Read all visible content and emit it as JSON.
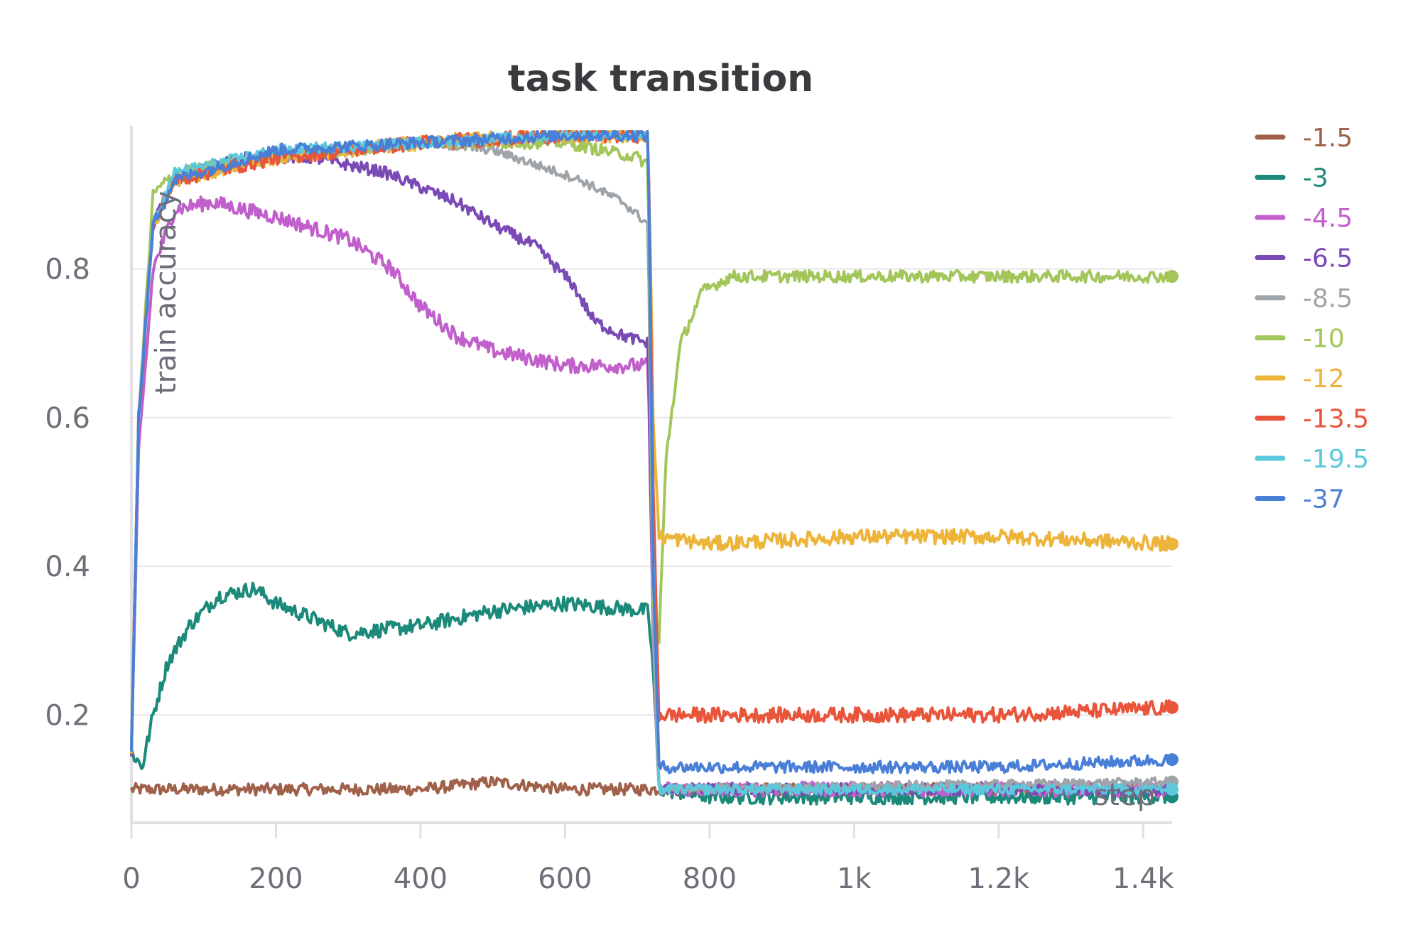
{
  "chart_data": {
    "type": "line",
    "title": "task transition",
    "ylabel": "train accuracy",
    "xlabel": "step",
    "xlim": [
      0,
      1440
    ],
    "ylim": [
      0.055,
      0.985
    ],
    "x_ticks": [
      0,
      200,
      400,
      600,
      800,
      1000,
      1200,
      1400
    ],
    "x_tick_labels": [
      "0",
      "200",
      "400",
      "600",
      "800",
      "1k",
      "1.2k",
      "1.4k"
    ],
    "y_ticks": [
      0.2,
      0.4,
      0.6,
      0.8
    ],
    "y_tick_labels": [
      "0.2",
      "0.4",
      "0.6",
      "0.8"
    ],
    "grid": true,
    "legend_position": "right",
    "series": [
      {
        "name": "-1.5",
        "color": "#a0614a",
        "points": [
          [
            0,
            0.1
          ],
          [
            100,
            0.1
          ],
          [
            200,
            0.1
          ],
          [
            300,
            0.1
          ],
          [
            400,
            0.1
          ],
          [
            500,
            0.11
          ],
          [
            600,
            0.1
          ],
          [
            700,
            0.1
          ],
          [
            720,
            0.1
          ],
          [
            740,
            0.1
          ],
          [
            1440,
            0.1
          ]
        ],
        "noise": 0.008,
        "end_marker": false
      },
      {
        "name": "-3",
        "color": "#1c8a7a",
        "points": [
          [
            0,
            0.15
          ],
          [
            15,
            0.13
          ],
          [
            30,
            0.2
          ],
          [
            50,
            0.27
          ],
          [
            80,
            0.32
          ],
          [
            120,
            0.36
          ],
          [
            170,
            0.37
          ],
          [
            200,
            0.35
          ],
          [
            300,
            0.31
          ],
          [
            400,
            0.32
          ],
          [
            500,
            0.34
          ],
          [
            600,
            0.35
          ],
          [
            715,
            0.34
          ],
          [
            722,
            0.26
          ],
          [
            730,
            0.1
          ],
          [
            800,
            0.09
          ],
          [
            1440,
            0.09
          ]
        ],
        "noise": 0.01,
        "end_marker": true
      },
      {
        "name": "-4.5",
        "color": "#c160cc",
        "points": [
          [
            0,
            0.15
          ],
          [
            10,
            0.55
          ],
          [
            30,
            0.8
          ],
          [
            60,
            0.88
          ],
          [
            110,
            0.89
          ],
          [
            200,
            0.87
          ],
          [
            300,
            0.84
          ],
          [
            360,
            0.8
          ],
          [
            400,
            0.75
          ],
          [
            450,
            0.71
          ],
          [
            500,
            0.69
          ],
          [
            550,
            0.68
          ],
          [
            600,
            0.67
          ],
          [
            650,
            0.67
          ],
          [
            715,
            0.67
          ],
          [
            722,
            0.3
          ],
          [
            730,
            0.1
          ],
          [
            1440,
            0.1
          ]
        ],
        "noise": 0.01,
        "end_marker": false
      },
      {
        "name": "-6.5",
        "color": "#7a4ab5",
        "points": [
          [
            0,
            0.15
          ],
          [
            10,
            0.6
          ],
          [
            30,
            0.86
          ],
          [
            60,
            0.92
          ],
          [
            150,
            0.95
          ],
          [
            250,
            0.95
          ],
          [
            350,
            0.93
          ],
          [
            400,
            0.91
          ],
          [
            450,
            0.89
          ],
          [
            500,
            0.86
          ],
          [
            560,
            0.83
          ],
          [
            610,
            0.78
          ],
          [
            640,
            0.73
          ],
          [
            680,
            0.71
          ],
          [
            715,
            0.7
          ],
          [
            722,
            0.3
          ],
          [
            730,
            0.1
          ],
          [
            1440,
            0.1
          ]
        ],
        "noise": 0.008,
        "end_marker": false
      },
      {
        "name": "-8.5",
        "color": "#9fa4a8",
        "points": [
          [
            0,
            0.15
          ],
          [
            10,
            0.6
          ],
          [
            30,
            0.86
          ],
          [
            60,
            0.92
          ],
          [
            200,
            0.95
          ],
          [
            400,
            0.97
          ],
          [
            500,
            0.96
          ],
          [
            560,
            0.94
          ],
          [
            620,
            0.92
          ],
          [
            680,
            0.89
          ],
          [
            715,
            0.86
          ],
          [
            722,
            0.3
          ],
          [
            730,
            0.1
          ],
          [
            1440,
            0.11
          ]
        ],
        "noise": 0.006,
        "end_marker": true
      },
      {
        "name": "-10",
        "color": "#a2c65a",
        "points": [
          [
            0,
            0.15
          ],
          [
            10,
            0.6
          ],
          [
            30,
            0.9
          ],
          [
            60,
            0.93
          ],
          [
            200,
            0.95
          ],
          [
            400,
            0.97
          ],
          [
            600,
            0.97
          ],
          [
            700,
            0.95
          ],
          [
            715,
            0.94
          ],
          [
            722,
            0.35
          ],
          [
            730,
            0.3
          ],
          [
            740,
            0.55
          ],
          [
            760,
            0.7
          ],
          [
            790,
            0.77
          ],
          [
            830,
            0.79
          ],
          [
            1000,
            0.79
          ],
          [
            1200,
            0.79
          ],
          [
            1440,
            0.79
          ]
        ],
        "noise": 0.008,
        "end_marker": true
      },
      {
        "name": "-12",
        "color": "#edb43a",
        "points": [
          [
            0,
            0.15
          ],
          [
            10,
            0.6
          ],
          [
            30,
            0.86
          ],
          [
            60,
            0.92
          ],
          [
            200,
            0.95
          ],
          [
            400,
            0.97
          ],
          [
            600,
            0.98
          ],
          [
            715,
            0.98
          ],
          [
            722,
            0.6
          ],
          [
            730,
            0.44
          ],
          [
            800,
            0.43
          ],
          [
            1000,
            0.44
          ],
          [
            1200,
            0.44
          ],
          [
            1440,
            0.43
          ]
        ],
        "noise": 0.01,
        "end_marker": true
      },
      {
        "name": "-13.5",
        "color": "#e8553b",
        "points": [
          [
            0,
            0.15
          ],
          [
            10,
            0.6
          ],
          [
            30,
            0.86
          ],
          [
            60,
            0.92
          ],
          [
            200,
            0.95
          ],
          [
            400,
            0.97
          ],
          [
            600,
            0.98
          ],
          [
            715,
            0.98
          ],
          [
            722,
            0.5
          ],
          [
            730,
            0.2
          ],
          [
            800,
            0.2
          ],
          [
            1000,
            0.2
          ],
          [
            1200,
            0.2
          ],
          [
            1440,
            0.21
          ]
        ],
        "noise": 0.01,
        "end_marker": true
      },
      {
        "name": "-19.5",
        "color": "#5cc8dc",
        "points": [
          [
            0,
            0.15
          ],
          [
            10,
            0.6
          ],
          [
            30,
            0.86
          ],
          [
            60,
            0.93
          ],
          [
            200,
            0.96
          ],
          [
            400,
            0.97
          ],
          [
            600,
            0.98
          ],
          [
            715,
            0.98
          ],
          [
            722,
            0.4
          ],
          [
            730,
            0.1
          ],
          [
            1440,
            0.1
          ]
        ],
        "noise": 0.007,
        "end_marker": true
      },
      {
        "name": "-37",
        "color": "#4a7fd8",
        "points": [
          [
            0,
            0.15
          ],
          [
            10,
            0.6
          ],
          [
            30,
            0.86
          ],
          [
            60,
            0.92
          ],
          [
            200,
            0.96
          ],
          [
            400,
            0.97
          ],
          [
            600,
            0.98
          ],
          [
            715,
            0.98
          ],
          [
            722,
            0.4
          ],
          [
            730,
            0.13
          ],
          [
            800,
            0.13
          ],
          [
            1000,
            0.13
          ],
          [
            1200,
            0.13
          ],
          [
            1440,
            0.14
          ]
        ],
        "noise": 0.008,
        "end_marker": true
      }
    ]
  }
}
